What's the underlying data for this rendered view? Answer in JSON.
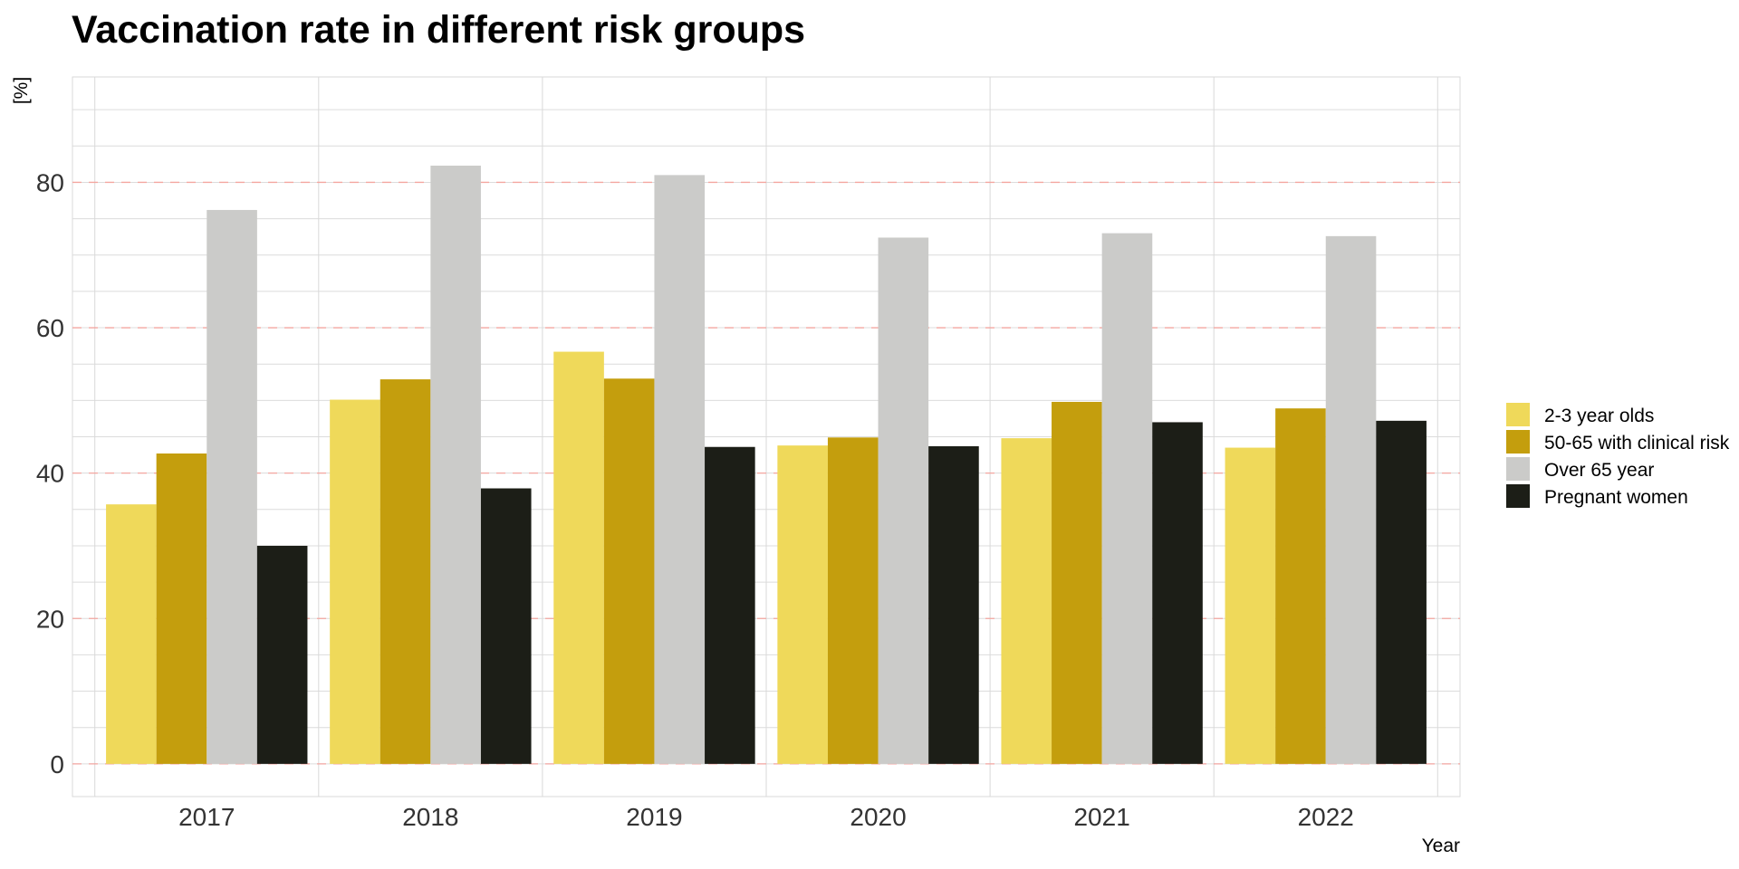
{
  "chart_data": {
    "type": "bar",
    "title": "Vaccination rate in different risk groups",
    "xlabel": "Year",
    "ylabel": "[%]",
    "categories": [
      "2017",
      "2018",
      "2019",
      "2020",
      "2021",
      "2022"
    ],
    "series": [
      {
        "name": "2-3 year olds",
        "color": "#EFD95A",
        "values": [
          35.7,
          50.1,
          56.7,
          43.8,
          44.8,
          43.5
        ]
      },
      {
        "name": "50-65 with clinical risk",
        "color": "#C49E0D",
        "values": [
          42.7,
          52.9,
          53.0,
          44.9,
          49.8,
          48.9
        ]
      },
      {
        "name": "Over 65 year",
        "color": "#CBCBC9",
        "values": [
          76.2,
          82.3,
          81.0,
          72.4,
          73.0,
          72.6
        ]
      },
      {
        "name": "Pregnant women",
        "color": "#1C1E17",
        "values": [
          30.0,
          37.9,
          43.6,
          43.7,
          47.0,
          47.2
        ]
      }
    ],
    "yticks": [
      0,
      20,
      40,
      60,
      80
    ],
    "ylim": [
      -4.5,
      94.5
    ],
    "grid": true,
    "reference_lines": [
      0,
      20,
      40,
      60,
      80
    ],
    "reference_line_color": "#F4A6A0",
    "legend_position": "right"
  }
}
